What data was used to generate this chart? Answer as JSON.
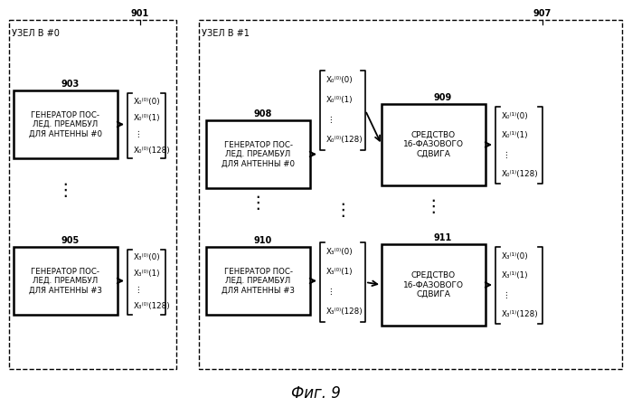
{
  "title": "Фиг. 9",
  "background": "#ffffff",
  "node0_label": "УЗЕЛ В #0",
  "node1_label": "УЗЕЛ В #1",
  "label_901": "901",
  "label_907": "907",
  "label_903": "903",
  "label_905": "905",
  "label_908": "908",
  "label_909": "909",
  "label_910": "910",
  "label_911": "911",
  "box903_text": "ГЕНЕРАТОР ПОС-\nЛЕД. ПРЕАМБУЛ\nДЛЯ АНТЕННЫ #0",
  "box905_text": "ГЕНЕРАТОР ПОС-\nЛЕД. ПРЕАМБУЛ\nДЛЯ АНТЕННЫ #3",
  "box908_text": "ГЕНЕРАТОР ПОС-\nЛЕД. ПРЕАМБУЛ\nДЛЯ АНТЕННЫ #0",
  "box910_text": "ГЕНЕРАТОР ПОС-\nЛЕД. ПРЕАМБУЛ\nДЛЯ АНТЕННЫ #3",
  "box909_text": "СРЕДСТВО\n16-ФАЗОВОГО\nСДВИГА",
  "box911_text": "СРЕДСТВО\n16-ФАЗОВОГО\nСДВИГА"
}
